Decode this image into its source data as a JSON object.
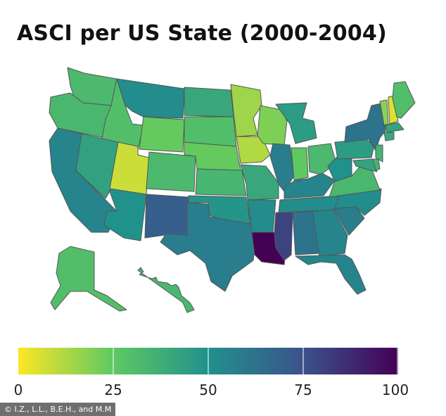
{
  "title": "ASCI per US State (2000-2004)",
  "legend": {
    "colors": [
      "#fde725",
      "#5ec962",
      "#21918c",
      "#3b528b",
      "#440154"
    ],
    "ticks": [
      "0",
      "25",
      "50",
      "75",
      "100"
    ]
  },
  "credit": "© I.Z., L.L., B.E.H., and M.M",
  "states": [
    {
      "id": "WA",
      "value": 32
    },
    {
      "id": "OR",
      "value": 33
    },
    {
      "id": "CA",
      "value": 55
    },
    {
      "id": "ID",
      "value": 30
    },
    {
      "id": "NV",
      "value": 43
    },
    {
      "id": "AZ",
      "value": 50
    },
    {
      "id": "UT",
      "value": 8
    },
    {
      "id": "MT",
      "value": 52
    },
    {
      "id": "WY",
      "value": 24
    },
    {
      "id": "CO",
      "value": 32
    },
    {
      "id": "NM",
      "value": 70
    },
    {
      "id": "ND",
      "value": 40
    },
    {
      "id": "SD",
      "value": 30
    },
    {
      "id": "NE",
      "value": 24
    },
    {
      "id": "KS",
      "value": 34
    },
    {
      "id": "OK",
      "value": 48
    },
    {
      "id": "TX",
      "value": 58
    },
    {
      "id": "MN",
      "value": 15
    },
    {
      "id": "IA",
      "value": 12
    },
    {
      "id": "MO",
      "value": 40
    },
    {
      "id": "AR",
      "value": 52
    },
    {
      "id": "LA",
      "value": 100
    },
    {
      "id": "WI",
      "value": 20
    },
    {
      "id": "IL",
      "value": 58
    },
    {
      "id": "MI",
      "value": 45
    },
    {
      "id": "IN",
      "value": 25
    },
    {
      "id": "OH",
      "value": 32
    },
    {
      "id": "KY",
      "value": 55
    },
    {
      "id": "TN",
      "value": 52
    },
    {
      "id": "MS",
      "value": 80
    },
    {
      "id": "AL",
      "value": 62
    },
    {
      "id": "GA",
      "value": 55
    },
    {
      "id": "FL",
      "value": 55
    },
    {
      "id": "SC",
      "value": 58
    },
    {
      "id": "NC",
      "value": 52
    },
    {
      "id": "VA",
      "value": 33
    },
    {
      "id": "WV",
      "value": 50
    },
    {
      "id": "PA",
      "value": 45
    },
    {
      "id": "NY",
      "value": 62
    },
    {
      "id": "VT",
      "value": 18
    },
    {
      "id": "NH",
      "value": 5
    },
    {
      "id": "ME",
      "value": 30
    },
    {
      "id": "MA",
      "value": 42
    },
    {
      "id": "CT",
      "value": 40
    },
    {
      "id": "NJ",
      "value": 35
    },
    {
      "id": "MD",
      "value": 42
    },
    {
      "id": "DE",
      "value": 35
    },
    {
      "id": "AK",
      "value": 30
    },
    {
      "id": "HI",
      "value": 33
    }
  ]
}
